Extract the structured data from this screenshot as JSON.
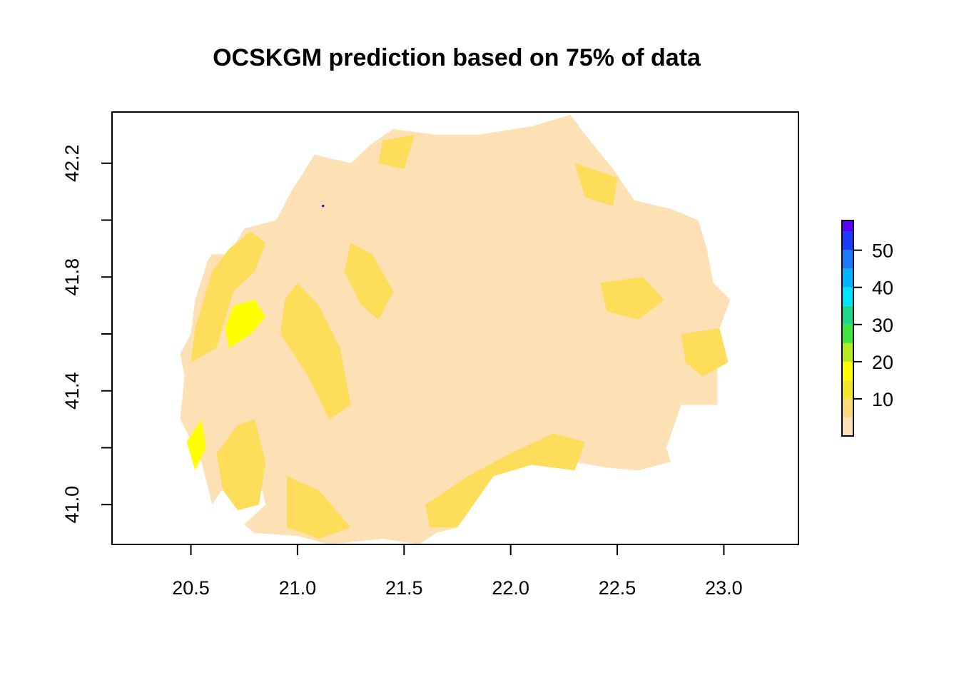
{
  "chart_data": {
    "type": "heatmap",
    "title": "OCSKGM prediction based on 75% of data",
    "xlabel": "",
    "ylabel": "",
    "xlim": [
      20.13,
      23.35
    ],
    "ylim": [
      40.86,
      42.38
    ],
    "x_ticks": [
      {
        "value": 20.5,
        "label": "20.5"
      },
      {
        "value": 21.0,
        "label": "21.0"
      },
      {
        "value": 21.5,
        "label": "21.5"
      },
      {
        "value": 22.0,
        "label": "22.0"
      },
      {
        "value": 22.5,
        "label": "22.5"
      },
      {
        "value": 23.0,
        "label": "23.0"
      }
    ],
    "y_ticks": [
      {
        "value": 41.0,
        "label": "41.0"
      },
      {
        "value": 41.2,
        "label": ""
      },
      {
        "value": 41.4,
        "label": "41.4"
      },
      {
        "value": 41.6,
        "label": ""
      },
      {
        "value": 41.8,
        "label": "41.8"
      },
      {
        "value": 42.0,
        "label": ""
      },
      {
        "value": 42.2,
        "label": "42.2"
      }
    ],
    "legend": {
      "placement": "right",
      "bins": [
        {
          "from": 0,
          "to": 5,
          "color": "#fde0b4"
        },
        {
          "from": 5,
          "to": 10,
          "color": "#fdd97a"
        },
        {
          "from": 10,
          "to": 15,
          "color": "#f2e52c"
        },
        {
          "from": 15,
          "to": 20,
          "color": "#ffff00"
        },
        {
          "from": 20,
          "to": 25,
          "color": "#b6ea1e"
        },
        {
          "from": 25,
          "to": 30,
          "color": "#3de63d"
        },
        {
          "from": 30,
          "to": 35,
          "color": "#1fd78a"
        },
        {
          "from": 35,
          "to": 40,
          "color": "#00e5ff"
        },
        {
          "from": 40,
          "to": 45,
          "color": "#00b4ff"
        },
        {
          "from": 45,
          "to": 50,
          "color": "#1a7dff"
        },
        {
          "from": 50,
          "to": 55,
          "color": "#1a3cff"
        },
        {
          "from": 55,
          "to": 58,
          "color": "#5a00ff"
        }
      ],
      "range": [
        0,
        58
      ],
      "ticks": [
        {
          "value": 10,
          "label": "10"
        },
        {
          "value": 20,
          "label": "20"
        },
        {
          "value": 30,
          "label": "30"
        },
        {
          "value": 40,
          "label": "40"
        },
        {
          "value": 50,
          "label": "50"
        }
      ]
    },
    "colors": {
      "low": "#fde0b4",
      "moderate": "#fddd5a",
      "high": "#ffff00",
      "max": "#1a10c8"
    },
    "regions": {
      "country": [
        [
          20.45,
          41.53
        ],
        [
          20.5,
          41.6
        ],
        [
          20.52,
          41.72
        ],
        [
          20.58,
          41.86
        ],
        [
          20.6,
          41.88
        ],
        [
          20.68,
          41.88
        ],
        [
          20.75,
          41.97
        ],
        [
          20.9,
          42.0
        ],
        [
          20.97,
          42.1
        ],
        [
          21.08,
          42.23
        ],
        [
          21.25,
          42.2
        ],
        [
          21.35,
          42.27
        ],
        [
          21.45,
          42.32
        ],
        [
          21.65,
          42.3
        ],
        [
          21.85,
          42.3
        ],
        [
          22.1,
          42.33
        ],
        [
          22.28,
          42.37
        ],
        [
          22.35,
          42.3
        ],
        [
          22.48,
          42.18
        ],
        [
          22.58,
          42.07
        ],
        [
          22.75,
          42.04
        ],
        [
          22.88,
          42.0
        ],
        [
          22.92,
          41.9
        ],
        [
          22.95,
          41.78
        ],
        [
          23.03,
          41.72
        ],
        [
          22.98,
          41.62
        ],
        [
          22.97,
          41.52
        ],
        [
          22.97,
          41.35
        ],
        [
          22.8,
          41.35
        ],
        [
          22.73,
          41.2
        ],
        [
          22.75,
          41.15
        ],
        [
          22.6,
          41.12
        ],
        [
          22.45,
          41.13
        ],
        [
          22.3,
          41.15
        ],
        [
          22.1,
          41.14
        ],
        [
          21.98,
          41.14
        ],
        [
          21.92,
          41.1
        ],
        [
          21.75,
          40.92
        ],
        [
          21.65,
          40.9
        ],
        [
          21.57,
          40.86
        ],
        [
          21.4,
          40.88
        ],
        [
          21.15,
          40.86
        ],
        [
          21.0,
          40.89
        ],
        [
          20.8,
          40.9
        ],
        [
          20.75,
          40.93
        ],
        [
          20.85,
          41.0
        ],
        [
          20.82,
          41.1
        ],
        [
          20.67,
          41.08
        ],
        [
          20.6,
          41.0
        ],
        [
          20.55,
          41.15
        ],
        [
          20.45,
          41.3
        ],
        [
          20.47,
          41.45
        ]
      ],
      "moderate": [
        [
          [
            20.5,
            41.5
          ],
          [
            20.62,
            41.55
          ],
          [
            20.7,
            41.75
          ],
          [
            20.8,
            41.82
          ],
          [
            20.85,
            41.92
          ],
          [
            20.78,
            41.96
          ],
          [
            20.68,
            41.9
          ],
          [
            20.6,
            41.82
          ],
          [
            20.52,
            41.62
          ]
        ],
        [
          [
            20.92,
            41.6
          ],
          [
            21.05,
            41.45
          ],
          [
            21.15,
            41.3
          ],
          [
            21.25,
            41.35
          ],
          [
            21.2,
            41.55
          ],
          [
            21.1,
            41.7
          ],
          [
            21.0,
            41.78
          ],
          [
            20.94,
            41.72
          ]
        ],
        [
          [
            20.62,
            41.18
          ],
          [
            20.72,
            41.28
          ],
          [
            20.8,
            41.3
          ],
          [
            20.85,
            41.15
          ],
          [
            20.82,
            41.0
          ],
          [
            20.72,
            40.98
          ],
          [
            20.65,
            41.05
          ]
        ],
        [
          [
            20.95,
            41.1
          ],
          [
            21.1,
            41.05
          ],
          [
            21.25,
            40.92
          ],
          [
            21.1,
            40.88
          ],
          [
            20.95,
            40.92
          ]
        ],
        [
          [
            21.25,
            41.92
          ],
          [
            21.35,
            41.88
          ],
          [
            21.45,
            41.75
          ],
          [
            21.38,
            41.65
          ],
          [
            21.3,
            41.7
          ],
          [
            21.22,
            41.82
          ]
        ],
        [
          [
            21.6,
            41.0
          ],
          [
            21.8,
            41.1
          ],
          [
            22.0,
            41.18
          ],
          [
            22.2,
            41.25
          ],
          [
            22.35,
            41.22
          ],
          [
            22.3,
            41.12
          ],
          [
            22.1,
            41.14
          ],
          [
            21.92,
            41.1
          ],
          [
            21.75,
            40.92
          ],
          [
            21.62,
            40.92
          ]
        ],
        [
          [
            21.4,
            42.28
          ],
          [
            21.55,
            42.3
          ],
          [
            21.5,
            42.18
          ],
          [
            21.38,
            42.2
          ]
        ],
        [
          [
            22.3,
            42.2
          ],
          [
            22.5,
            42.15
          ],
          [
            22.48,
            42.05
          ],
          [
            22.35,
            42.08
          ]
        ],
        [
          [
            22.42,
            41.78
          ],
          [
            22.62,
            41.8
          ],
          [
            22.72,
            41.72
          ],
          [
            22.6,
            41.65
          ],
          [
            22.45,
            41.68
          ]
        ],
        [
          [
            22.8,
            41.6
          ],
          [
            22.98,
            41.62
          ],
          [
            23.02,
            41.5
          ],
          [
            22.9,
            41.45
          ],
          [
            22.82,
            41.5
          ]
        ]
      ],
      "high": [
        [
          [
            20.68,
            41.55
          ],
          [
            20.78,
            41.6
          ],
          [
            20.85,
            41.66
          ],
          [
            20.8,
            41.72
          ],
          [
            20.7,
            41.7
          ],
          [
            20.66,
            41.62
          ]
        ],
        [
          [
            20.48,
            41.22
          ],
          [
            20.55,
            41.3
          ],
          [
            20.57,
            41.2
          ],
          [
            20.52,
            41.12
          ]
        ]
      ],
      "max_point": [
        21.12,
        42.05
      ]
    }
  }
}
